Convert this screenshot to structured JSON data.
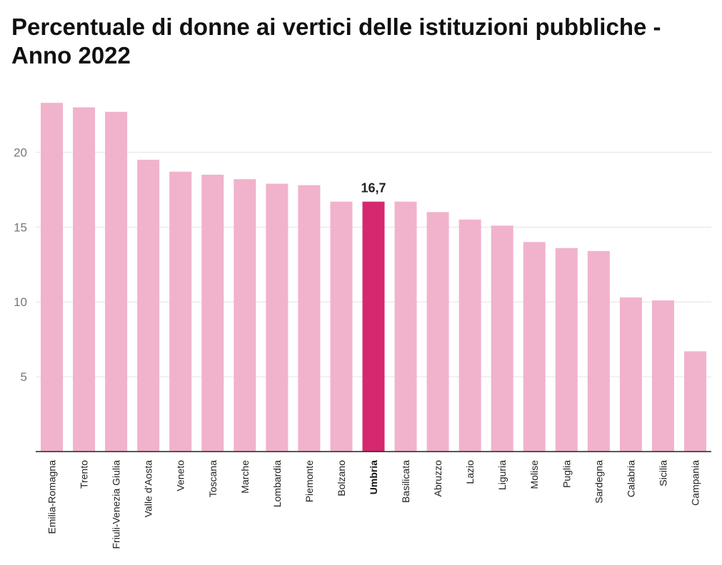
{
  "title": "Percentuale di donne ai vertici delle istituzioni pubbliche - Anno 2022",
  "colors": {
    "bar": "#f1b2cc",
    "highlight": "#d6286e",
    "grid": "#e3e3e3",
    "axis": "#222222"
  },
  "chart_data": {
    "type": "bar",
    "title": "Percentuale di donne ai vertici delle istituzioni pubbliche - Anno 2022",
    "xlabel": "",
    "ylabel": "",
    "ylim": [
      0,
      23.5
    ],
    "yticks": [
      5,
      10,
      15,
      20
    ],
    "ytick_labels": [
      "5",
      "10",
      "15",
      "20"
    ],
    "grid": true,
    "highlight": "Umbria",
    "categories": [
      "Emilia-Romagna",
      "Trento",
      "Friuli-Venezia Giulia",
      "Valle d'Aosta",
      "Veneto",
      "Toscana",
      "Marche",
      "Lombardia",
      "Piemonte",
      "Bolzano",
      "Umbria",
      "Basilicata",
      "Abruzzo",
      "Lazio",
      "Liguria",
      "Molise",
      "Puglia",
      "Sardegna",
      "Calabria",
      "Sicilia",
      "Campania"
    ],
    "values": [
      23.3,
      23.0,
      22.7,
      19.5,
      18.7,
      18.5,
      18.2,
      17.9,
      17.8,
      16.7,
      16.7,
      16.7,
      16.0,
      15.5,
      15.1,
      14.0,
      13.6,
      13.4,
      10.3,
      10.1,
      6.7
    ],
    "data_labels": [
      {
        "category": "Umbria",
        "text": "16,7"
      }
    ]
  }
}
